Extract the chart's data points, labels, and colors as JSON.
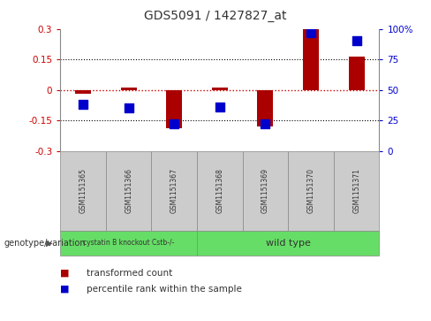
{
  "title": "GDS5091 / 1427827_at",
  "samples": [
    "GSM1151365",
    "GSM1151366",
    "GSM1151367",
    "GSM1151368",
    "GSM1151369",
    "GSM1151370",
    "GSM1151371"
  ],
  "transformed_count": [
    -0.02,
    0.01,
    -0.19,
    0.01,
    -0.18,
    0.3,
    0.165
  ],
  "percentile_rank": [
    38,
    35,
    22,
    36,
    22,
    97,
    90
  ],
  "ylim_left": [
    -0.3,
    0.3
  ],
  "ylim_right": [
    0,
    100
  ],
  "yticks_left": [
    -0.3,
    -0.15,
    0,
    0.15,
    0.3
  ],
  "yticks_right": [
    0,
    25,
    50,
    75,
    100
  ],
  "ytick_labels_left": [
    "-0.3",
    "-0.15",
    "0",
    "0.15",
    "0.3"
  ],
  "ytick_labels_right": [
    "0",
    "25",
    "50",
    "75",
    "100%"
  ],
  "dotted_lines": [
    -0.15,
    0.15
  ],
  "bar_color": "#aa0000",
  "dot_color": "#0000cc",
  "bar_width": 0.35,
  "dot_size": 45,
  "group1_label": "cystatin B knockout Cstb-/-",
  "group2_label": "wild type",
  "group1_color": "#66dd66",
  "group2_color": "#66dd66",
  "genotype_label": "genotype/variation",
  "legend_bar_label": "transformed count",
  "legend_dot_label": "percentile rank within the sample",
  "bg_color": "#ffffff",
  "tick_label_color_left": "#cc0000",
  "tick_label_color_right": "#0000cc",
  "sample_box_color": "#cccccc",
  "sample_box_edge": "#888888"
}
